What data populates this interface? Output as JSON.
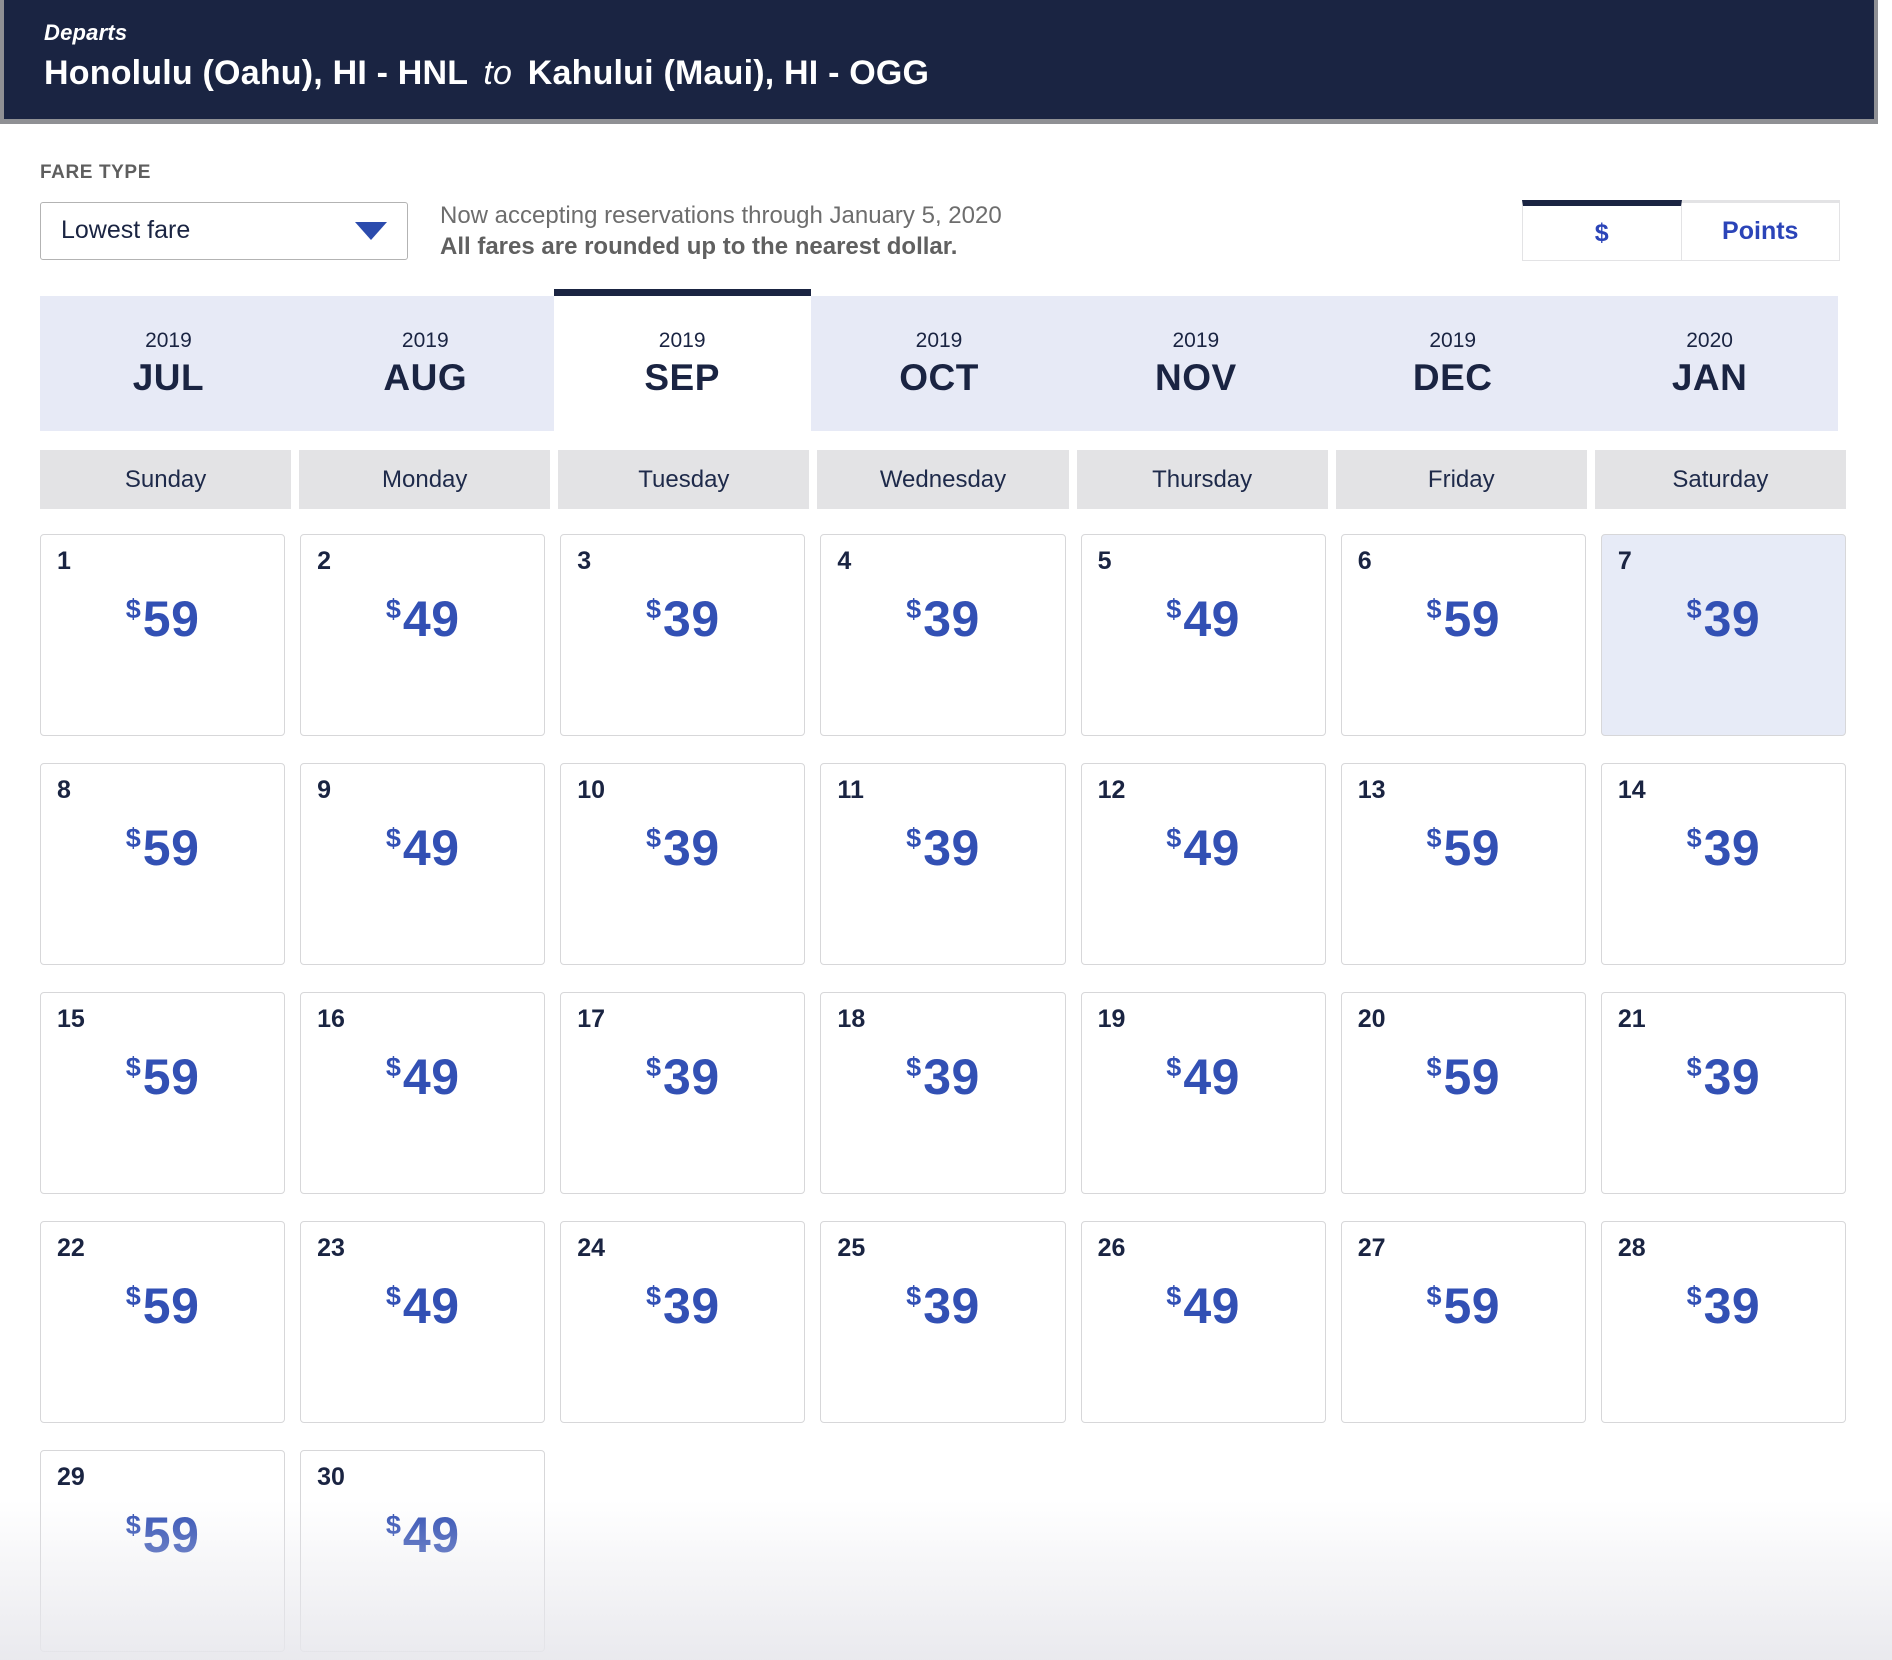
{
  "header": {
    "departs_label": "Departs",
    "route": {
      "origin": "Honolulu (Oahu), HI - HNL",
      "to_word": "to",
      "destination": "Kahului (Maui), HI - OGG"
    }
  },
  "fare_type": {
    "label": "FARE TYPE",
    "selected_value": "Lowest fare"
  },
  "notice": {
    "line1": "Now accepting reservations through January 5, 2020",
    "line2": "All fares are rounded up to the nearest dollar."
  },
  "currency_toggle": {
    "dollar_label": "$",
    "points_label": "Points",
    "selected": "dollar"
  },
  "month_tabs": [
    {
      "year": "2019",
      "month": "JUL",
      "selected": false
    },
    {
      "year": "2019",
      "month": "AUG",
      "selected": false
    },
    {
      "year": "2019",
      "month": "SEP",
      "selected": true
    },
    {
      "year": "2019",
      "month": "OCT",
      "selected": false
    },
    {
      "year": "2019",
      "month": "NOV",
      "selected": false
    },
    {
      "year": "2019",
      "month": "DEC",
      "selected": false
    },
    {
      "year": "2020",
      "month": "JAN",
      "selected": false
    }
  ],
  "weekday_headers": [
    "Sunday",
    "Monday",
    "Tuesday",
    "Wednesday",
    "Thursday",
    "Friday",
    "Saturday"
  ],
  "calendar": {
    "currency_symbol": "$",
    "selected_day": 7,
    "days": [
      {
        "day": 1,
        "price": 59
      },
      {
        "day": 2,
        "price": 49
      },
      {
        "day": 3,
        "price": 39
      },
      {
        "day": 4,
        "price": 39
      },
      {
        "day": 5,
        "price": 49
      },
      {
        "day": 6,
        "price": 59
      },
      {
        "day": 7,
        "price": 39
      },
      {
        "day": 8,
        "price": 59
      },
      {
        "day": 9,
        "price": 49
      },
      {
        "day": 10,
        "price": 39
      },
      {
        "day": 11,
        "price": 39
      },
      {
        "day": 12,
        "price": 49
      },
      {
        "day": 13,
        "price": 59
      },
      {
        "day": 14,
        "price": 39
      },
      {
        "day": 15,
        "price": 59
      },
      {
        "day": 16,
        "price": 49
      },
      {
        "day": 17,
        "price": 39
      },
      {
        "day": 18,
        "price": 39
      },
      {
        "day": 19,
        "price": 49
      },
      {
        "day": 20,
        "price": 59
      },
      {
        "day": 21,
        "price": 39
      },
      {
        "day": 22,
        "price": 59
      },
      {
        "day": 23,
        "price": 49
      },
      {
        "day": 24,
        "price": 39
      },
      {
        "day": 25,
        "price": 39
      },
      {
        "day": 26,
        "price": 49
      },
      {
        "day": 27,
        "price": 59
      },
      {
        "day": 28,
        "price": 39
      },
      {
        "day": 29,
        "price": 59
      },
      {
        "day": 30,
        "price": 49
      }
    ]
  },
  "colors": {
    "header_navy": "#1a2442",
    "fare_blue": "#3250b4",
    "tab_background": "#e7eaf6",
    "weekday_background": "#e3e3e5",
    "selected_day_background": "#e7ebf7"
  }
}
